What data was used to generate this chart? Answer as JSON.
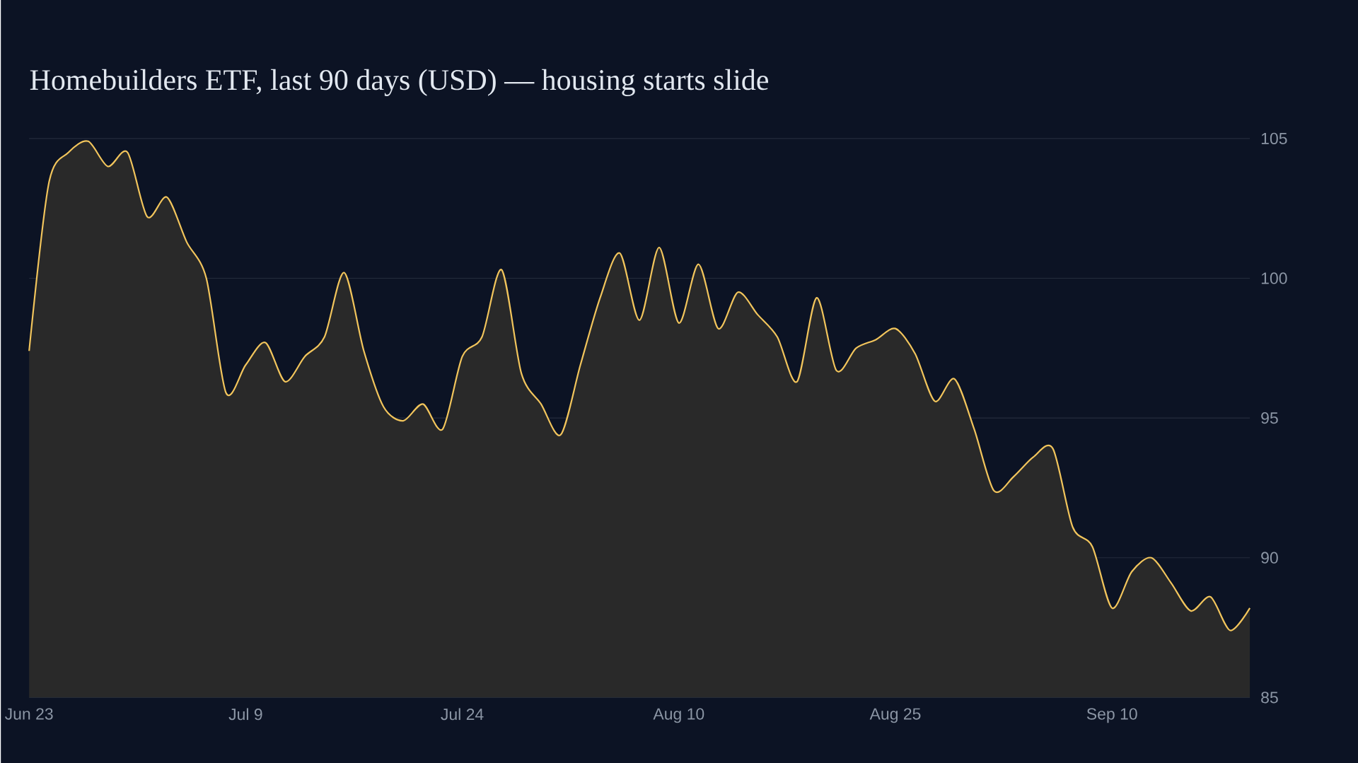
{
  "chart_data": {
    "type": "area",
    "title": "Homebuilders ETF, last 90 days (USD) — housing starts slide",
    "categories": [
      "Jun 23",
      null,
      null,
      null,
      null,
      null,
      null,
      null,
      null,
      null,
      null,
      "Jul 9",
      null,
      null,
      null,
      null,
      null,
      null,
      null,
      null,
      null,
      null,
      "Jul 24",
      null,
      null,
      null,
      null,
      null,
      null,
      null,
      null,
      null,
      null,
      "Aug 10",
      null,
      null,
      null,
      null,
      null,
      null,
      null,
      null,
      null,
      null,
      "Aug 25",
      null,
      null,
      null,
      null,
      null,
      null,
      null,
      null,
      null,
      null,
      "Sep 10",
      null,
      null,
      null,
      null,
      null,
      null,
      null
    ],
    "series": [
      {
        "color": "#f2c55c",
        "values": [
          97.4,
          103.4,
          104.5,
          104.9,
          104.0,
          104.5,
          102.2,
          102.9,
          101.3,
          100.0,
          95.9,
          96.9,
          97.7,
          96.3,
          97.2,
          97.9,
          100.2,
          97.4,
          95.4,
          94.9,
          95.5,
          94.6,
          97.2,
          97.9,
          100.3,
          96.6,
          95.5,
          94.4,
          96.9,
          99.3,
          100.9,
          98.5,
          101.1,
          98.4,
          100.5,
          98.2,
          99.5,
          98.7,
          97.9,
          96.3,
          99.3,
          96.7,
          97.5,
          97.8,
          98.2,
          97.3,
          95.6,
          96.4,
          94.6,
          92.4,
          92.9,
          93.6,
          93.9,
          91.1,
          90.4,
          88.2,
          89.5,
          90.0,
          89.1,
          88.1,
          88.6,
          87.4,
          88.2
        ]
      }
    ],
    "ylim": [
      85,
      105
    ],
    "yticks": [
      85,
      90,
      95,
      100,
      105
    ],
    "grid": "y",
    "marker": "none",
    "line_style": "solid"
  }
}
